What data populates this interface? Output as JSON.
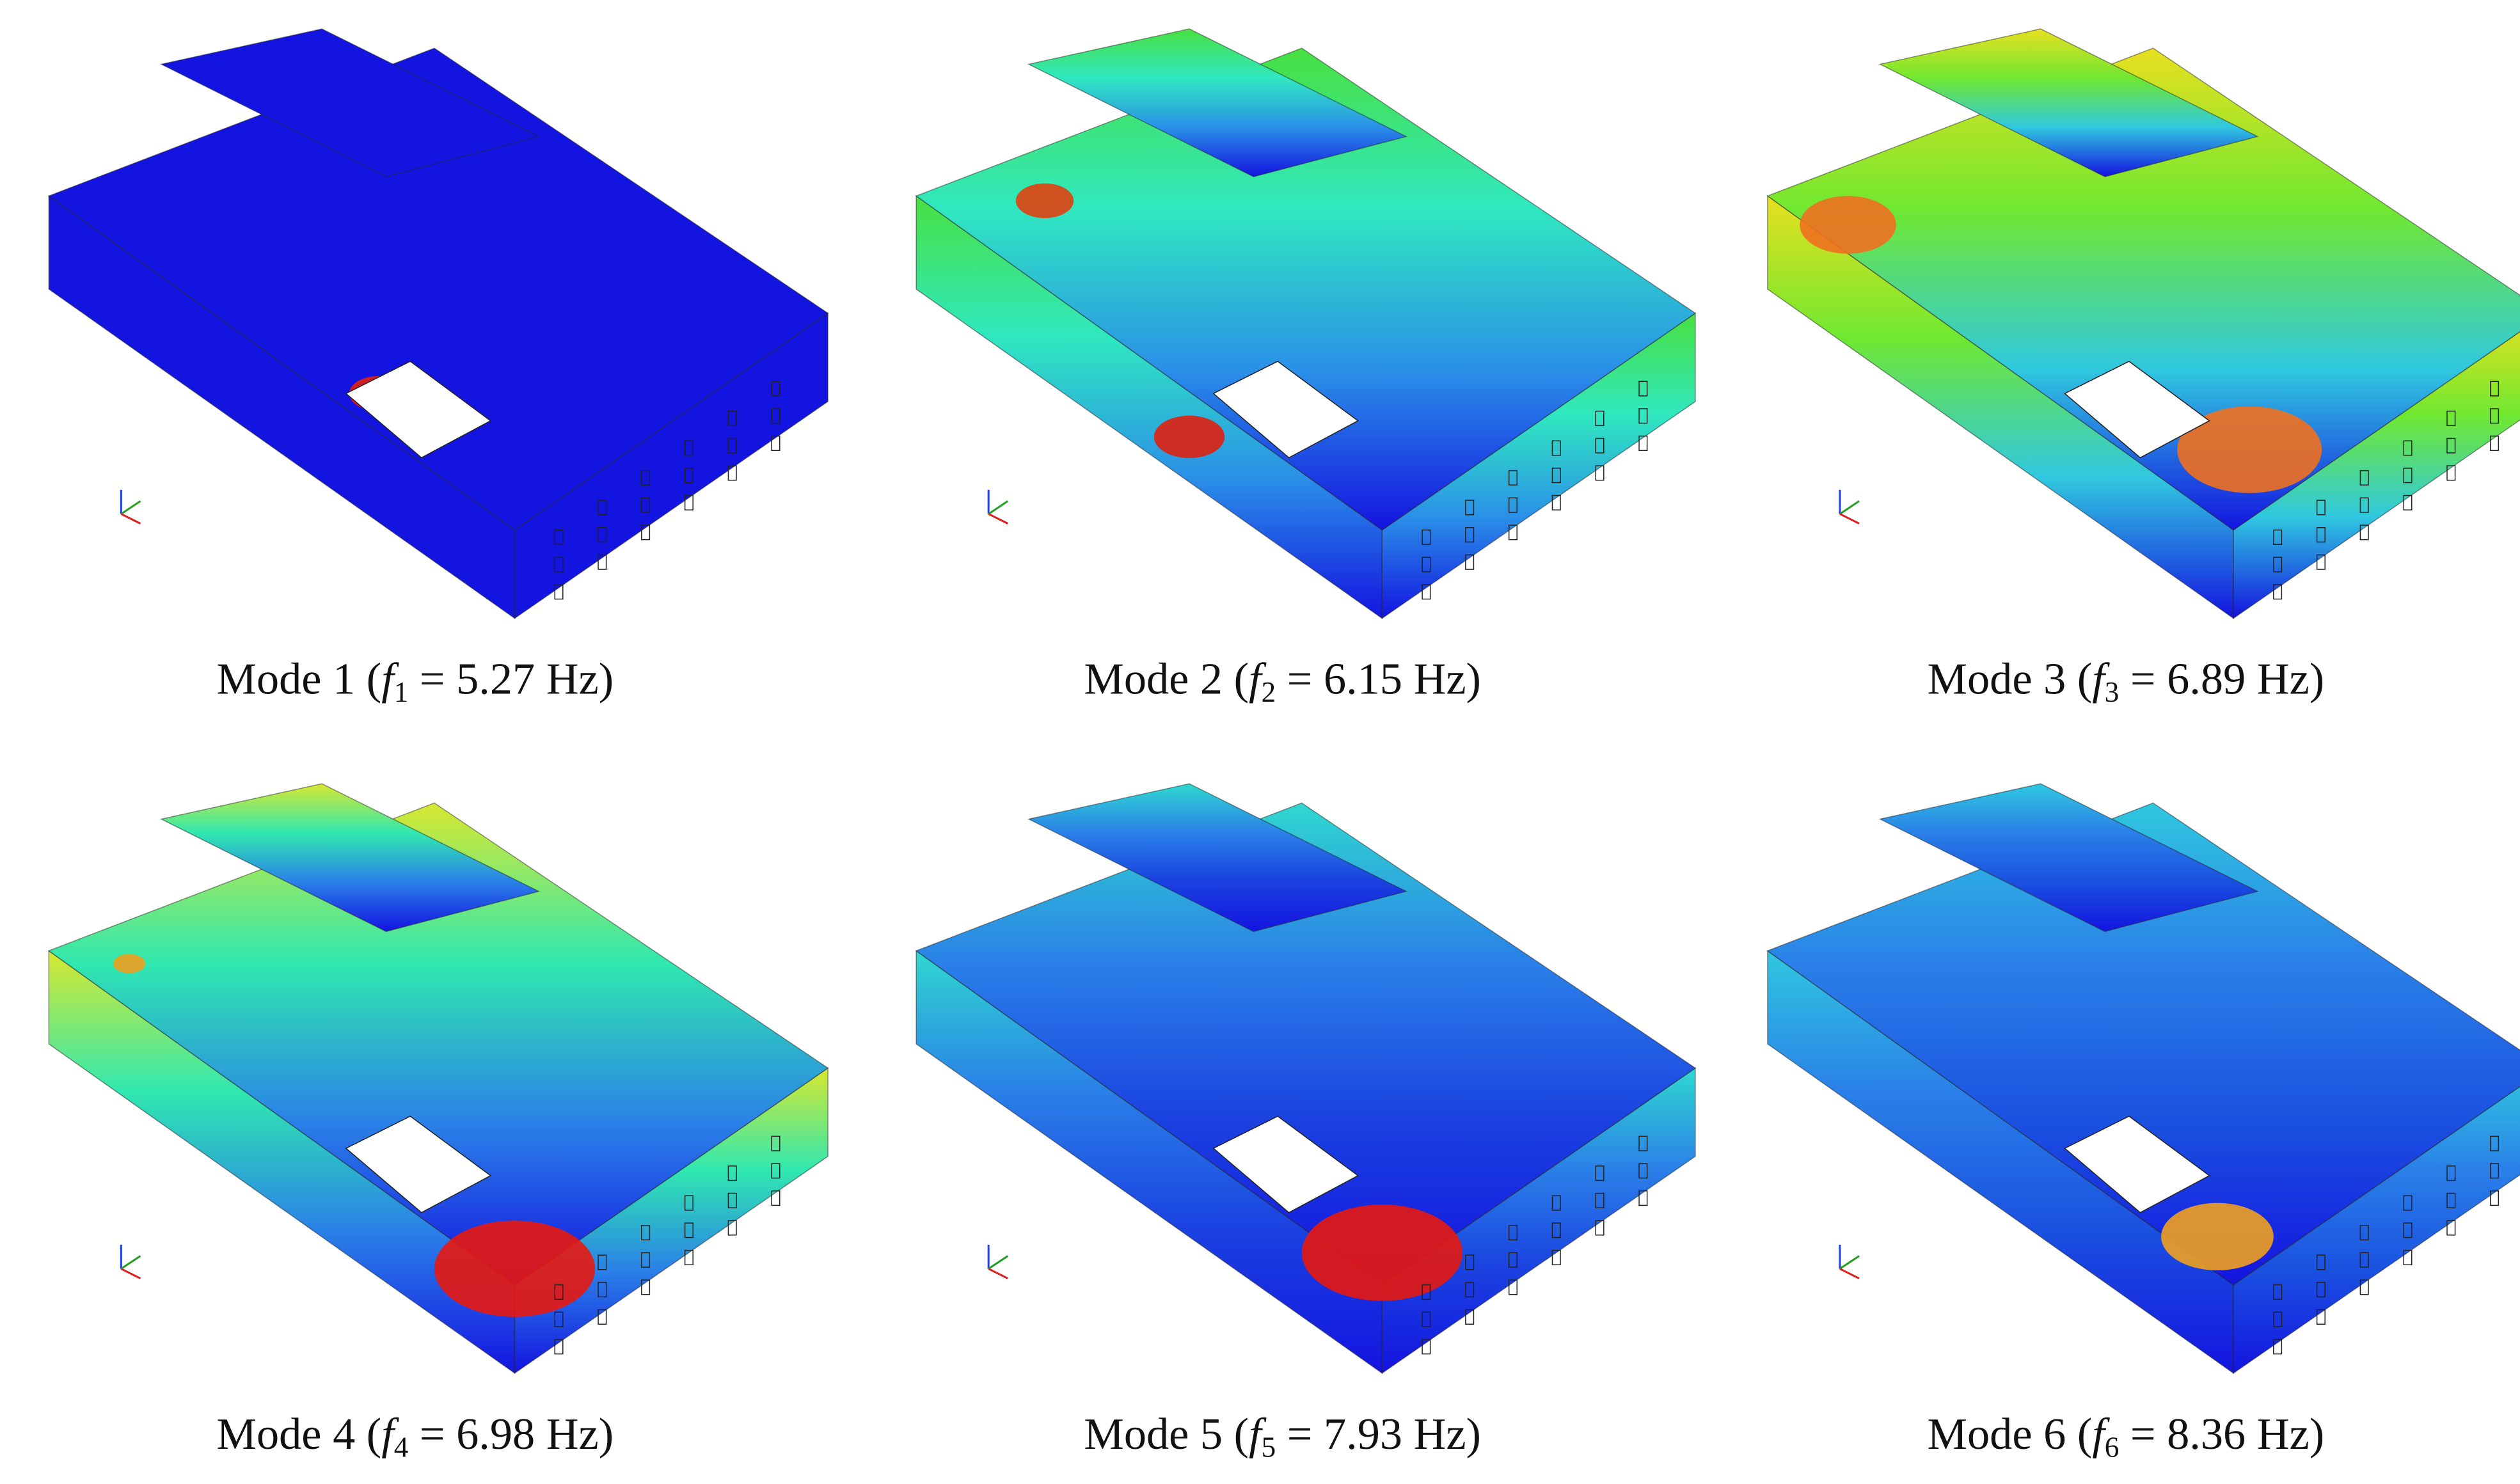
{
  "figure": {
    "panels": [
      {
        "prefix": "Mode 1 (",
        "symbol": "f",
        "subscript": "1",
        "suffix": " = 5.27 Hz)"
      },
      {
        "prefix": "Mode 2 (",
        "symbol": "f",
        "subscript": "2",
        "suffix": " = 6.15 Hz)"
      },
      {
        "prefix": "Mode 3 (",
        "symbol": "f",
        "subscript": "3",
        "suffix": " = 6.89 Hz)"
      },
      {
        "prefix": "Mode 4 (",
        "symbol": "f",
        "subscript": "4",
        "suffix": " = 6.98 Hz)"
      },
      {
        "prefix": "Mode 5 (",
        "symbol": "f",
        "subscript": "5",
        "suffix": " = 7.93 Hz)"
      },
      {
        "prefix": "Mode 6 (",
        "symbol": "f",
        "subscript": "6",
        "suffix": " = 8.36 Hz)"
      }
    ]
  }
}
